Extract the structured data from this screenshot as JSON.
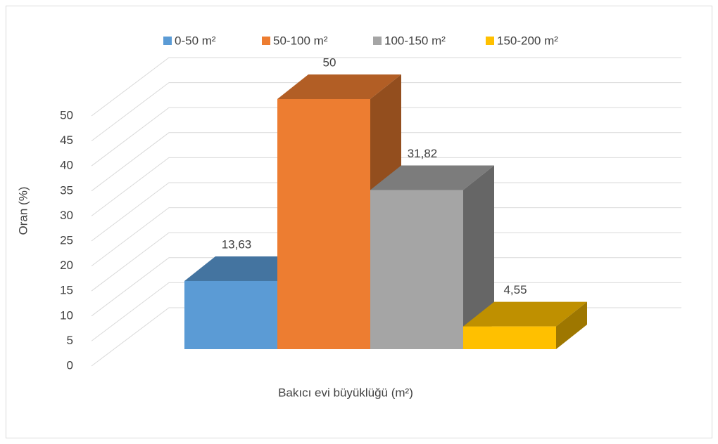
{
  "chart_data": {
    "type": "bar3d",
    "x_label": "Bakıcı evi büyüklüğü (m²)",
    "y_label": "Oran (%)",
    "series": [
      {
        "name": "0-50 m²",
        "color": "#5b9bd5",
        "values": [
          13.63
        ],
        "value_labels": [
          "13,63"
        ]
      },
      {
        "name": "50-100 m²",
        "color": "#ed7d31",
        "values": [
          50
        ],
        "value_labels": [
          "50"
        ]
      },
      {
        "name": "100-150 m²",
        "color": "#a5a5a5",
        "values": [
          31.82
        ],
        "value_labels": [
          "31,82"
        ]
      },
      {
        "name": "150-200 m²",
        "color": "#ffc000",
        "values": [
          4.55
        ],
        "value_labels": [
          "4,55"
        ]
      }
    ],
    "ylim": [
      0,
      50
    ],
    "yticks": [
      0,
      5,
      10,
      15,
      20,
      25,
      30,
      35,
      40,
      45,
      50
    ],
    "grid": true,
    "legend": "top"
  }
}
